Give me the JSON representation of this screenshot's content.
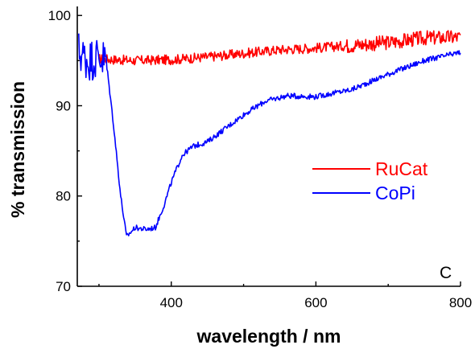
{
  "chart_data": {
    "type": "line",
    "xlabel": "wavelength / nm",
    "ylabel": "% transmission",
    "xlim": [
      270,
      800
    ],
    "ylim": [
      70,
      101
    ],
    "x_ticks": [
      400,
      600,
      800
    ],
    "y_ticks": [
      70,
      80,
      90,
      100
    ],
    "panel_label": "C",
    "grid": false,
    "legend_placement": "right",
    "series": [
      {
        "name": "RuCat",
        "color": "#ff0000",
        "noise": 0.55,
        "points": [
          [
            300,
            95.2
          ],
          [
            350,
            95.0
          ],
          [
            400,
            95.1
          ],
          [
            450,
            95.4
          ],
          [
            500,
            95.8
          ],
          [
            550,
            96.2
          ],
          [
            600,
            96.4
          ],
          [
            650,
            96.7
          ],
          [
            700,
            97.0
          ],
          [
            750,
            97.5
          ],
          [
            800,
            97.6
          ]
        ]
      },
      {
        "name": "CoPi",
        "color": "#0000ff",
        "noise": 0.3,
        "points": [
          [
            272,
            96.0
          ],
          [
            285,
            95.0
          ],
          [
            300,
            95.5
          ],
          [
            310,
            95.0
          ],
          [
            320,
            88.0
          ],
          [
            330,
            80.0
          ],
          [
            338,
            75.5
          ],
          [
            350,
            76.5
          ],
          [
            365,
            76.3
          ],
          [
            378,
            76.5
          ],
          [
            390,
            79.0
          ],
          [
            400,
            81.5
          ],
          [
            415,
            84.5
          ],
          [
            430,
            85.5
          ],
          [
            450,
            86.0
          ],
          [
            470,
            87.2
          ],
          [
            500,
            89.0
          ],
          [
            530,
            90.5
          ],
          [
            560,
            91.1
          ],
          [
            600,
            91.0
          ],
          [
            650,
            91.8
          ],
          [
            700,
            93.5
          ],
          [
            750,
            95.0
          ],
          [
            800,
            95.9
          ]
        ]
      }
    ]
  }
}
